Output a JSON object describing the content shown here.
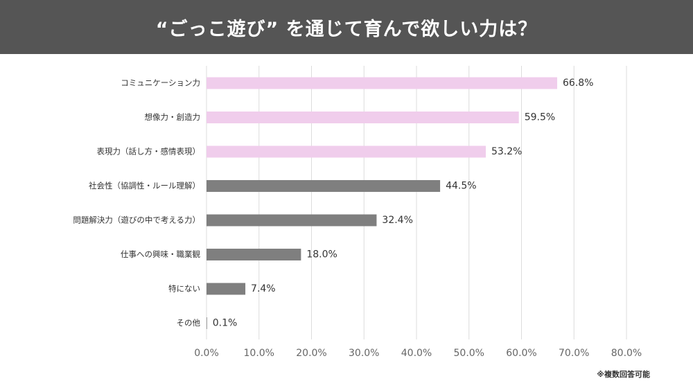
{
  "title": "“ごっこ遊び” を通じて育んで欲しい力は？",
  "footnote": "※複数回答可能",
  "colors": {
    "header_bg": "#555555",
    "highlight_bar": "#f0cdec",
    "default_bar": "#7f7f7f",
    "grid": "#dcdcdc",
    "label": "#333333",
    "tick": "#666666"
  },
  "chart_data": {
    "type": "bar",
    "orientation": "horizontal",
    "title": "“ごっこ遊び” を通じて育んで欲しい力は？",
    "categories": [
      "コミュニケーション力",
      "想像力・創造力",
      "表現力（話し方・感情表現）",
      "社会性（協調性・ルール理解）",
      "問題解決力（遊びの中で考える力）",
      "仕事への興味・職業観",
      "特にない",
      "その他"
    ],
    "values": [
      66.8,
      59.5,
      53.2,
      44.5,
      32.4,
      18.0,
      7.4,
      0.1
    ],
    "value_labels": [
      "66.8%",
      "59.5%",
      "53.2%",
      "44.5%",
      "32.4%",
      "18.0%",
      "7.4%",
      "0.1%"
    ],
    "highlighted": [
      true,
      true,
      true,
      false,
      false,
      false,
      false,
      false
    ],
    "xlim": [
      0,
      80
    ],
    "xticks": [
      0,
      10,
      20,
      30,
      40,
      50,
      60,
      70,
      80
    ],
    "xtick_labels": [
      "0.0%",
      "10.0%",
      "20.0%",
      "30.0%",
      "40.0%",
      "50.0%",
      "60.0%",
      "70.0%",
      "80.0%"
    ],
    "grid": true,
    "xlabel": "",
    "ylabel": ""
  }
}
